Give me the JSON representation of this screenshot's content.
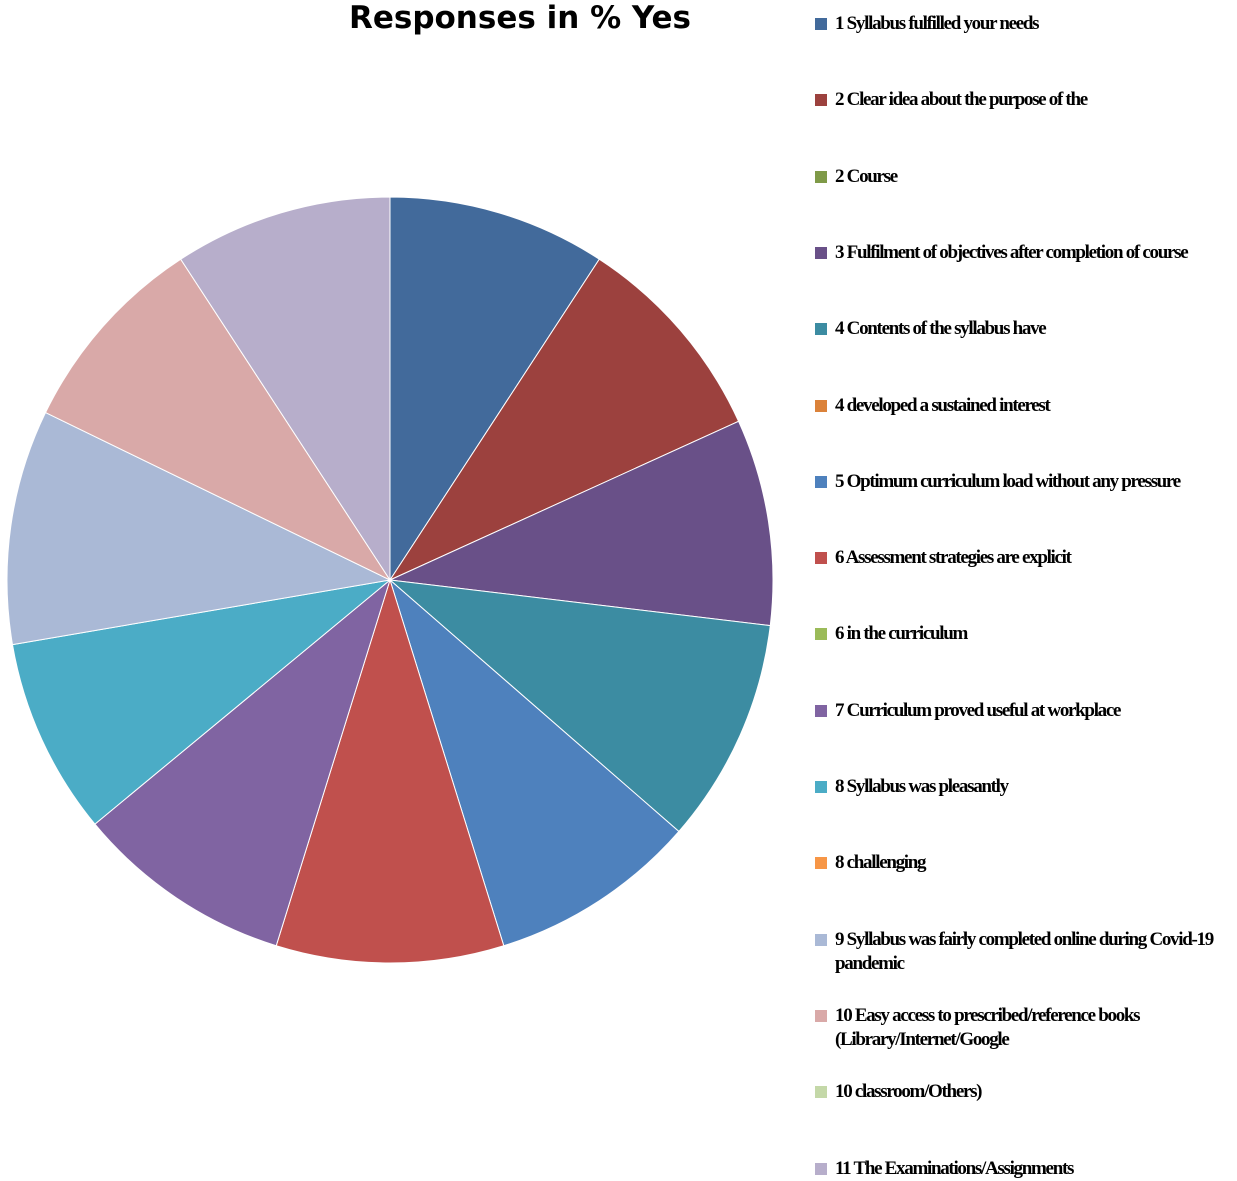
{
  "chart_data": {
    "type": "pie",
    "title": "Responses in % Yes",
    "legend_position": "right",
    "slices": [
      {
        "label": "1 Syllabus fulfilled your needs",
        "value": 9.2,
        "color": "#426a9b"
      },
      {
        "label": "2 Clear idea about the purpose of the",
        "value": 9.0,
        "color": "#9c413e"
      },
      {
        "label": "2 Course",
        "value": 0,
        "color": "#7f9a48"
      },
      {
        "label": "3 Fulfilment of objectives after completion of course",
        "value": 8.7,
        "color": "#695088"
      },
      {
        "label": "4 Contents of the syllabus have",
        "value": 9.5,
        "color": "#3c8ca2"
      },
      {
        "label": "4 developed a sustained interest",
        "value": 0,
        "color": "#db823a"
      },
      {
        "label": "5 Optimum curriculum load without any pressure",
        "value": 8.8,
        "color": "#4e81bd"
      },
      {
        "label": "6 Assessment strategies are explicit",
        "value": 9.6,
        "color": "#c0504d"
      },
      {
        "label": "6 in the curriculum",
        "value": 0,
        "color": "#9bbb59"
      },
      {
        "label": "7 Curriculum proved useful at workplace",
        "value": 9.2,
        "color": "#8064a2"
      },
      {
        "label": "8 Syllabus was pleasantly",
        "value": 8.3,
        "color": "#4bacc6"
      },
      {
        "label": "8 challenging",
        "value": 0,
        "color": "#f79646"
      },
      {
        "label": "9 Syllabus was fairly completed online during Covid-19 pandemic",
        "value": 9.9,
        "color": "#aab9d6"
      },
      {
        "label": "10 Easy access to prescribed/reference books (Library/Internet/Google",
        "value": 8.6,
        "color": "#d9a9a8"
      },
      {
        "label": "10 classroom/Others)",
        "value": 0,
        "color": "#c4d8a8"
      },
      {
        "label": "11 The Examinations/Assignments",
        "value": 9.2,
        "color": "#b7aecb"
      }
    ]
  }
}
